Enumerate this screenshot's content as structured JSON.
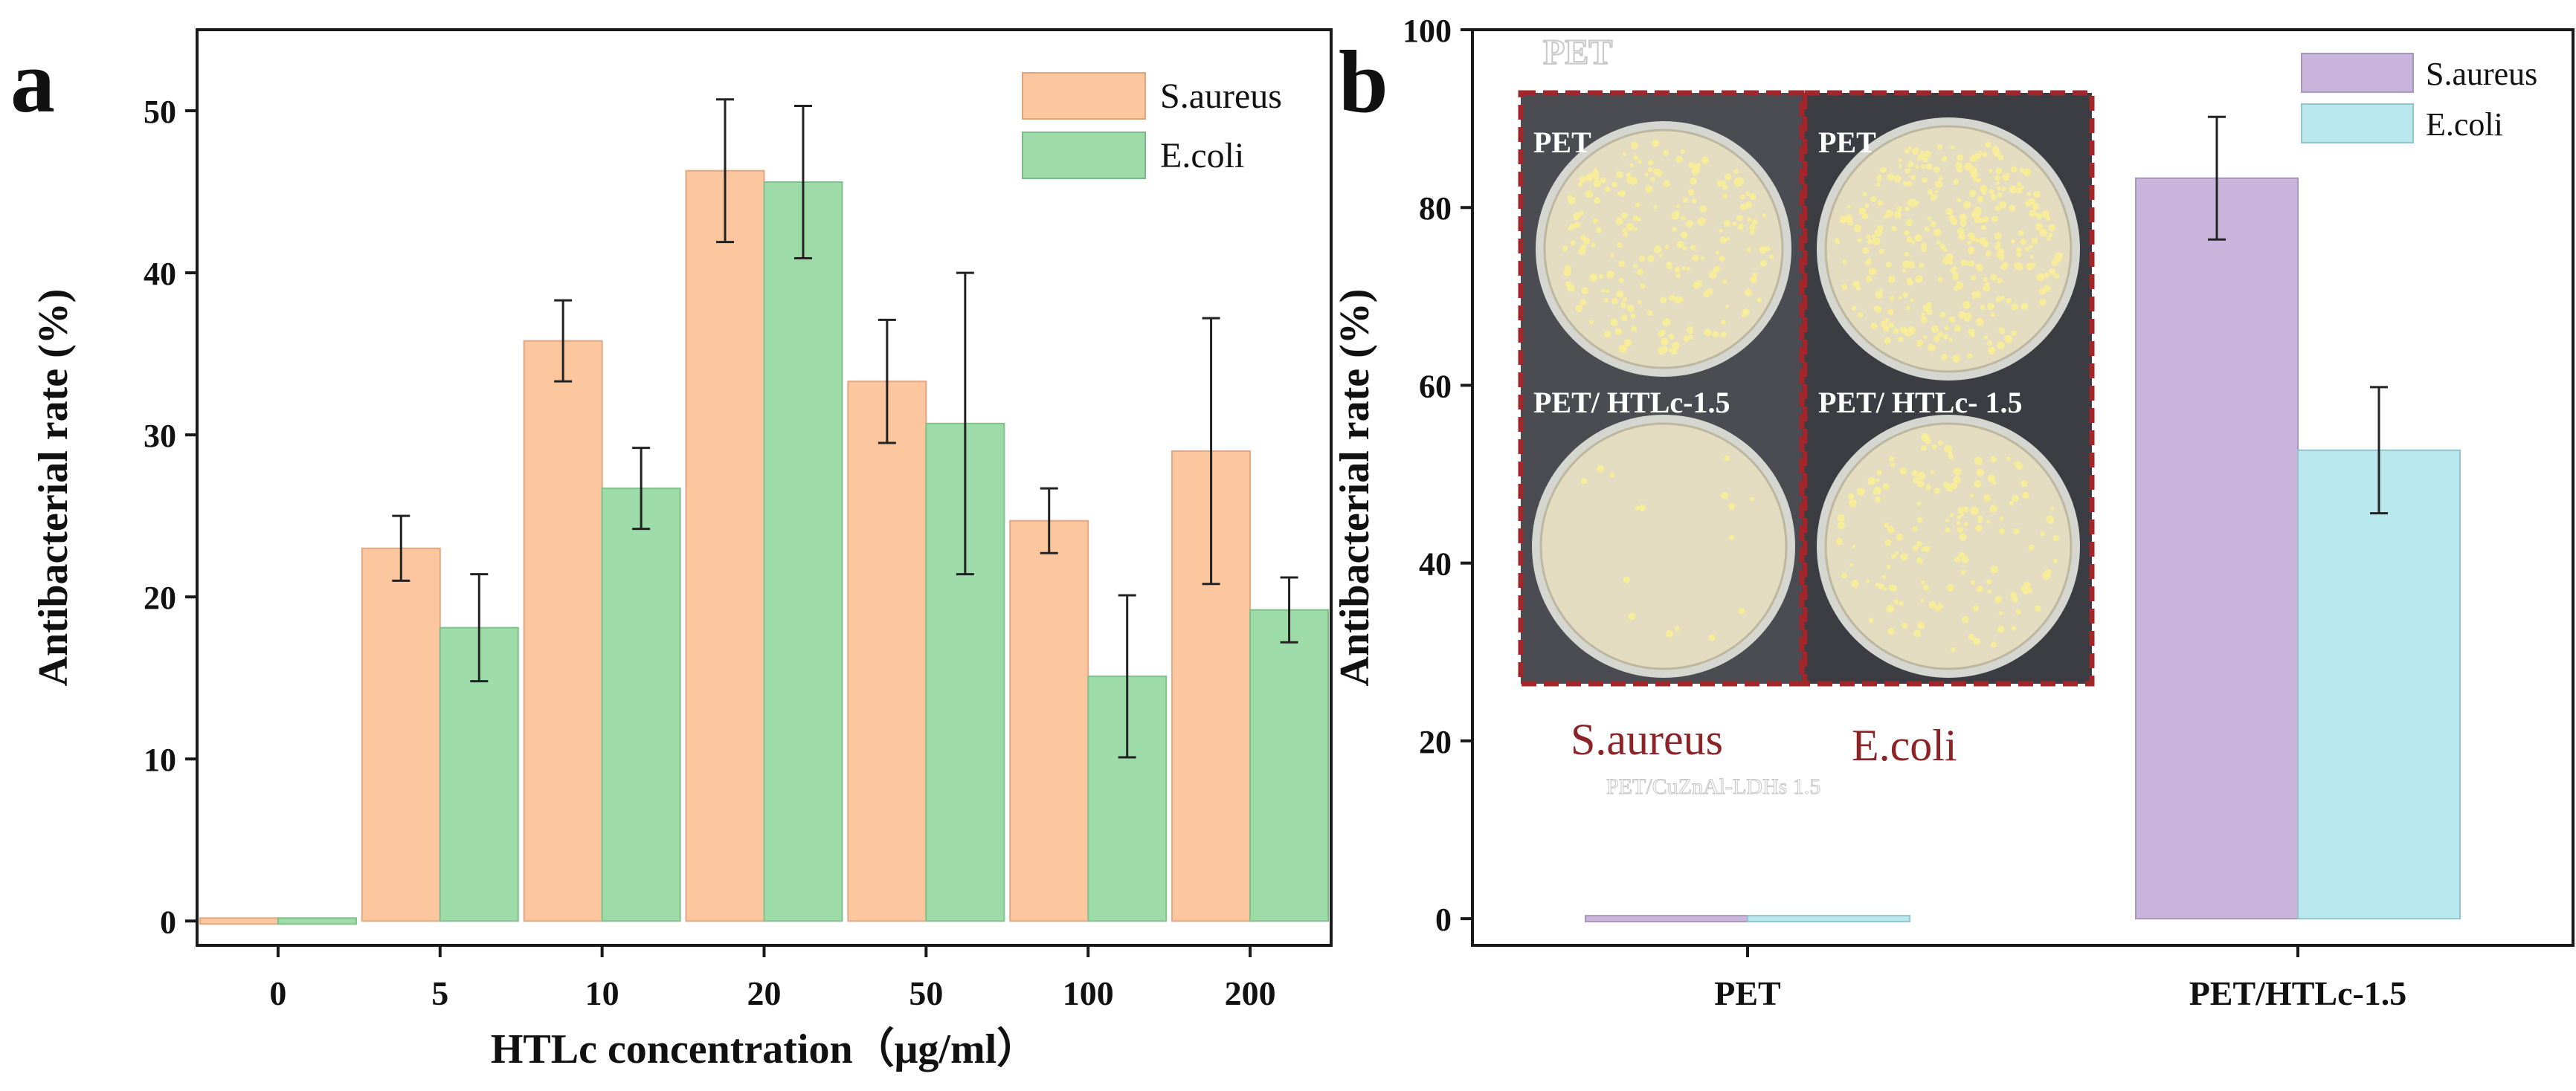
{
  "chart_data": [
    {
      "panel": "a",
      "type": "bar",
      "title": "",
      "xlabel": "HTLc concentration（μg/ml）",
      "ylabel": "Antibacterial rate (%)",
      "ylim": [
        -1.5,
        55
      ],
      "yticks": [
        0,
        10,
        20,
        30,
        40,
        50
      ],
      "categories": [
        "0",
        "5",
        "10",
        "20",
        "50",
        "100",
        "200"
      ],
      "series": [
        {
          "name": "S.aureus",
          "values": [
            0,
            23,
            35.8,
            46.3,
            33.3,
            24.7,
            29
          ],
          "errors": [
            0,
            2,
            2.5,
            4.4,
            3.8,
            2,
            8.2
          ]
        },
        {
          "name": "E.coli",
          "values": [
            0,
            18.1,
            26.7,
            45.6,
            30.7,
            15.1,
            19.2
          ],
          "errors": [
            0,
            3.3,
            2.5,
            4.7,
            9.3,
            5,
            2
          ]
        }
      ],
      "legend_position": "top-right"
    },
    {
      "panel": "b",
      "type": "bar",
      "title": "",
      "xlabel": "",
      "ylabel": "Antibacterial rate (%)",
      "ylim": [
        -3,
        100
      ],
      "yticks": [
        0,
        20,
        40,
        60,
        80,
        100
      ],
      "categories": [
        "PET",
        "PET/HTLc-1.5"
      ],
      "series": [
        {
          "name": "S.aureus",
          "values": [
            0,
            83.3
          ],
          "errors": [
            0,
            6.9
          ]
        },
        {
          "name": "E.coli",
          "values": [
            0,
            52.7
          ],
          "errors": [
            0,
            7.1
          ]
        }
      ],
      "legend_position": "top-right"
    }
  ],
  "panel_a": {
    "letter": "a"
  },
  "panel_b": {
    "letter": "b"
  },
  "inset": {
    "faded_top_label": "PET",
    "plate_labels": [
      "PET",
      "PET",
      "PET/ HTLc-1.5",
      "PET/ HTLc- 1.5"
    ],
    "caption_left": "S.aureus",
    "caption_right": "E.coli",
    "faded_caption": "PET/CuZnAl-LDHs 1.5"
  },
  "colors": {
    "a_saureus": "#fcc79f",
    "a_ecoli": "#9ddca8",
    "b_saureus": "#c9b5dc",
    "b_ecoli": "#b8e7ee",
    "axis": "#1a1a1a",
    "inset_frame": "#a3262a",
    "inset_bg": "#3b3d42",
    "agar": "#e3dcc0",
    "colony": "#f6ec9a"
  }
}
